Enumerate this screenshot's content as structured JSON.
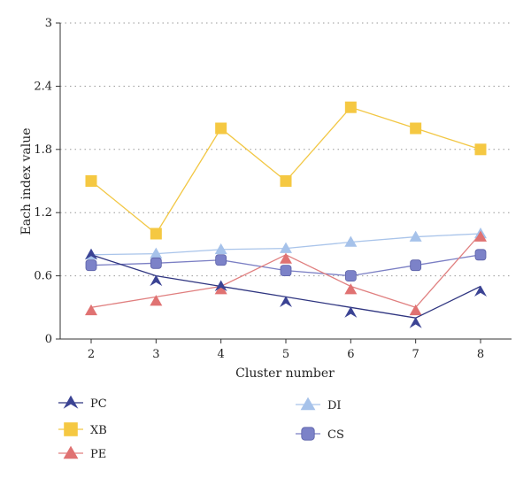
{
  "chart_data": {
    "type": "line",
    "xlabel": "Cluster number",
    "ylabel": "Each index value",
    "x": [
      2,
      3,
      4,
      5,
      6,
      7,
      8
    ],
    "ylim": [
      0,
      3
    ],
    "yticks": [
      "0",
      "0.6",
      "1.2",
      "1.8",
      "2.4",
      "3"
    ],
    "xticks": [
      "2",
      "3",
      "4",
      "5",
      "6",
      "7",
      "8"
    ],
    "grid": "horizontal dotted",
    "legend_position": "bottom",
    "series": [
      {
        "name": "PC",
        "marker": "arrow",
        "line_color": "#2f3580",
        "marker_color": "#3b4394",
        "values": [
          0.8,
          0.6,
          0.5,
          0.4,
          0.3,
          0.2,
          0.5
        ],
        "marker_values": [
          0.8,
          0.55,
          0.5,
          0.35,
          0.25,
          0.15,
          0.45
        ]
      },
      {
        "name": "XB",
        "marker": "square",
        "line_color": "#f2c744",
        "marker_color": "#f5c842",
        "values": [
          1.5,
          1.0,
          2.0,
          1.5,
          2.2,
          2.0,
          1.8
        ]
      },
      {
        "name": "PE",
        "marker": "triangle",
        "line_color": "#e07f7f",
        "marker_color": "#e07272",
        "values": [
          0.3,
          0.4,
          0.5,
          0.8,
          0.5,
          0.3,
          1.0
        ],
        "marker_values": [
          0.27,
          0.36,
          0.47,
          0.76,
          0.47,
          0.27,
          0.97
        ]
      },
      {
        "name": "DI",
        "marker": "triangle",
        "line_color": "#a9c4ea",
        "marker_color": "#a6c2ea",
        "values": [
          0.8,
          0.81,
          0.85,
          0.86,
          0.92,
          0.97,
          1.0
        ]
      },
      {
        "name": "CS",
        "marker": "rounded-square",
        "line_color": "#7b7fc4",
        "marker_color": "#7c82c8",
        "values": [
          0.7,
          0.72,
          0.75,
          0.65,
          0.6,
          0.7,
          0.8
        ]
      }
    ]
  }
}
